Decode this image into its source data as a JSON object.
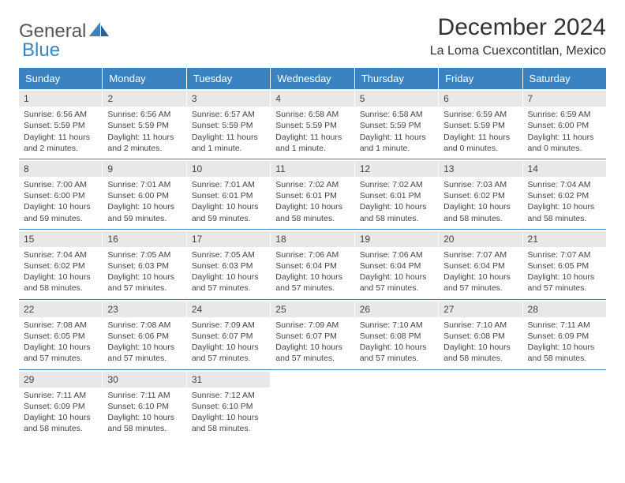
{
  "brand": {
    "part1": "General",
    "part2": "Blue"
  },
  "title": "December 2024",
  "location": "La Loma Cuexcontitlan, Mexico",
  "colors": {
    "header_bg": "#3b83c0",
    "header_fg": "#ffffff",
    "daynum_bg": "#e8e8e8",
    "text": "#444444",
    "rule": "#3b83c0"
  },
  "weekdays": [
    "Sunday",
    "Monday",
    "Tuesday",
    "Wednesday",
    "Thursday",
    "Friday",
    "Saturday"
  ],
  "weeks": [
    [
      {
        "n": "1",
        "sr": "Sunrise: 6:56 AM",
        "ss": "Sunset: 5:59 PM",
        "dl1": "Daylight: 11 hours",
        "dl2": "and 2 minutes."
      },
      {
        "n": "2",
        "sr": "Sunrise: 6:56 AM",
        "ss": "Sunset: 5:59 PM",
        "dl1": "Daylight: 11 hours",
        "dl2": "and 2 minutes."
      },
      {
        "n": "3",
        "sr": "Sunrise: 6:57 AM",
        "ss": "Sunset: 5:59 PM",
        "dl1": "Daylight: 11 hours",
        "dl2": "and 1 minute."
      },
      {
        "n": "4",
        "sr": "Sunrise: 6:58 AM",
        "ss": "Sunset: 5:59 PM",
        "dl1": "Daylight: 11 hours",
        "dl2": "and 1 minute."
      },
      {
        "n": "5",
        "sr": "Sunrise: 6:58 AM",
        "ss": "Sunset: 5:59 PM",
        "dl1": "Daylight: 11 hours",
        "dl2": "and 1 minute."
      },
      {
        "n": "6",
        "sr": "Sunrise: 6:59 AM",
        "ss": "Sunset: 5:59 PM",
        "dl1": "Daylight: 11 hours",
        "dl2": "and 0 minutes."
      },
      {
        "n": "7",
        "sr": "Sunrise: 6:59 AM",
        "ss": "Sunset: 6:00 PM",
        "dl1": "Daylight: 11 hours",
        "dl2": "and 0 minutes."
      }
    ],
    [
      {
        "n": "8",
        "sr": "Sunrise: 7:00 AM",
        "ss": "Sunset: 6:00 PM",
        "dl1": "Daylight: 10 hours",
        "dl2": "and 59 minutes."
      },
      {
        "n": "9",
        "sr": "Sunrise: 7:01 AM",
        "ss": "Sunset: 6:00 PM",
        "dl1": "Daylight: 10 hours",
        "dl2": "and 59 minutes."
      },
      {
        "n": "10",
        "sr": "Sunrise: 7:01 AM",
        "ss": "Sunset: 6:01 PM",
        "dl1": "Daylight: 10 hours",
        "dl2": "and 59 minutes."
      },
      {
        "n": "11",
        "sr": "Sunrise: 7:02 AM",
        "ss": "Sunset: 6:01 PM",
        "dl1": "Daylight: 10 hours",
        "dl2": "and 58 minutes."
      },
      {
        "n": "12",
        "sr": "Sunrise: 7:02 AM",
        "ss": "Sunset: 6:01 PM",
        "dl1": "Daylight: 10 hours",
        "dl2": "and 58 minutes."
      },
      {
        "n": "13",
        "sr": "Sunrise: 7:03 AM",
        "ss": "Sunset: 6:02 PM",
        "dl1": "Daylight: 10 hours",
        "dl2": "and 58 minutes."
      },
      {
        "n": "14",
        "sr": "Sunrise: 7:04 AM",
        "ss": "Sunset: 6:02 PM",
        "dl1": "Daylight: 10 hours",
        "dl2": "and 58 minutes."
      }
    ],
    [
      {
        "n": "15",
        "sr": "Sunrise: 7:04 AM",
        "ss": "Sunset: 6:02 PM",
        "dl1": "Daylight: 10 hours",
        "dl2": "and 58 minutes."
      },
      {
        "n": "16",
        "sr": "Sunrise: 7:05 AM",
        "ss": "Sunset: 6:03 PM",
        "dl1": "Daylight: 10 hours",
        "dl2": "and 57 minutes."
      },
      {
        "n": "17",
        "sr": "Sunrise: 7:05 AM",
        "ss": "Sunset: 6:03 PM",
        "dl1": "Daylight: 10 hours",
        "dl2": "and 57 minutes."
      },
      {
        "n": "18",
        "sr": "Sunrise: 7:06 AM",
        "ss": "Sunset: 6:04 PM",
        "dl1": "Daylight: 10 hours",
        "dl2": "and 57 minutes."
      },
      {
        "n": "19",
        "sr": "Sunrise: 7:06 AM",
        "ss": "Sunset: 6:04 PM",
        "dl1": "Daylight: 10 hours",
        "dl2": "and 57 minutes."
      },
      {
        "n": "20",
        "sr": "Sunrise: 7:07 AM",
        "ss": "Sunset: 6:04 PM",
        "dl1": "Daylight: 10 hours",
        "dl2": "and 57 minutes."
      },
      {
        "n": "21",
        "sr": "Sunrise: 7:07 AM",
        "ss": "Sunset: 6:05 PM",
        "dl1": "Daylight: 10 hours",
        "dl2": "and 57 minutes."
      }
    ],
    [
      {
        "n": "22",
        "sr": "Sunrise: 7:08 AM",
        "ss": "Sunset: 6:05 PM",
        "dl1": "Daylight: 10 hours",
        "dl2": "and 57 minutes."
      },
      {
        "n": "23",
        "sr": "Sunrise: 7:08 AM",
        "ss": "Sunset: 6:06 PM",
        "dl1": "Daylight: 10 hours",
        "dl2": "and 57 minutes."
      },
      {
        "n": "24",
        "sr": "Sunrise: 7:09 AM",
        "ss": "Sunset: 6:07 PM",
        "dl1": "Daylight: 10 hours",
        "dl2": "and 57 minutes."
      },
      {
        "n": "25",
        "sr": "Sunrise: 7:09 AM",
        "ss": "Sunset: 6:07 PM",
        "dl1": "Daylight: 10 hours",
        "dl2": "and 57 minutes."
      },
      {
        "n": "26",
        "sr": "Sunrise: 7:10 AM",
        "ss": "Sunset: 6:08 PM",
        "dl1": "Daylight: 10 hours",
        "dl2": "and 57 minutes."
      },
      {
        "n": "27",
        "sr": "Sunrise: 7:10 AM",
        "ss": "Sunset: 6:08 PM",
        "dl1": "Daylight: 10 hours",
        "dl2": "and 58 minutes."
      },
      {
        "n": "28",
        "sr": "Sunrise: 7:11 AM",
        "ss": "Sunset: 6:09 PM",
        "dl1": "Daylight: 10 hours",
        "dl2": "and 58 minutes."
      }
    ],
    [
      {
        "n": "29",
        "sr": "Sunrise: 7:11 AM",
        "ss": "Sunset: 6:09 PM",
        "dl1": "Daylight: 10 hours",
        "dl2": "and 58 minutes."
      },
      {
        "n": "30",
        "sr": "Sunrise: 7:11 AM",
        "ss": "Sunset: 6:10 PM",
        "dl1": "Daylight: 10 hours",
        "dl2": "and 58 minutes."
      },
      {
        "n": "31",
        "sr": "Sunrise: 7:12 AM",
        "ss": "Sunset: 6:10 PM",
        "dl1": "Daylight: 10 hours",
        "dl2": "and 58 minutes."
      },
      null,
      null,
      null,
      null
    ]
  ]
}
